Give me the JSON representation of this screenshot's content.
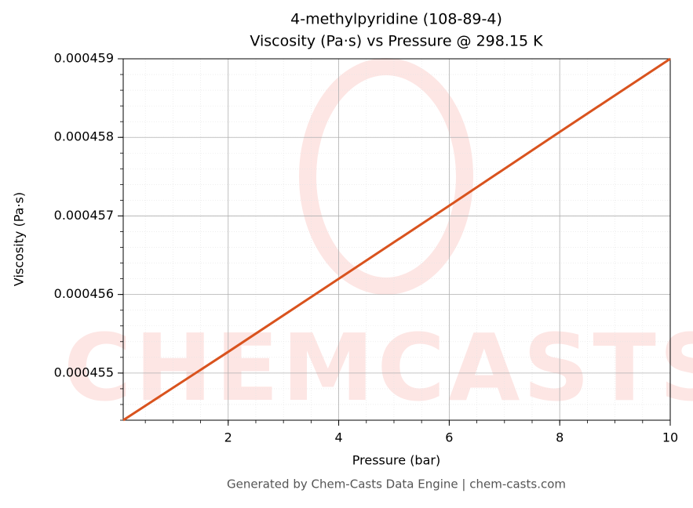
{
  "chart_data": {
    "type": "line",
    "title": "4-methylpyridine (108-89-4)",
    "subtitle": "Viscosity (Pa·s) vs Pressure @ 298.15 K",
    "xlabel": "Pressure (bar)",
    "ylabel": "Viscosity (Pa·s)",
    "footer": "Generated by Chem-Casts Data Engine | chem-casts.com",
    "watermark": "CHEMCASTS",
    "series": [
      {
        "name": "Viscosity",
        "color": "#d9531e",
        "x": [
          0.1,
          2,
          4,
          6,
          8,
          10
        ],
        "values": [
          0.0004544,
          0.00045527,
          0.0004562,
          0.00045713,
          0.00045807,
          0.000459
        ]
      }
    ],
    "xlim": [
      0.1,
      10
    ],
    "xticks": [
      2,
      4,
      6,
      8,
      10
    ],
    "ylim": [
      0.0004544,
      0.000459
    ],
    "yticks": [
      0.000455,
      0.000456,
      0.000457,
      0.000458,
      0.000459
    ],
    "grid": true
  }
}
